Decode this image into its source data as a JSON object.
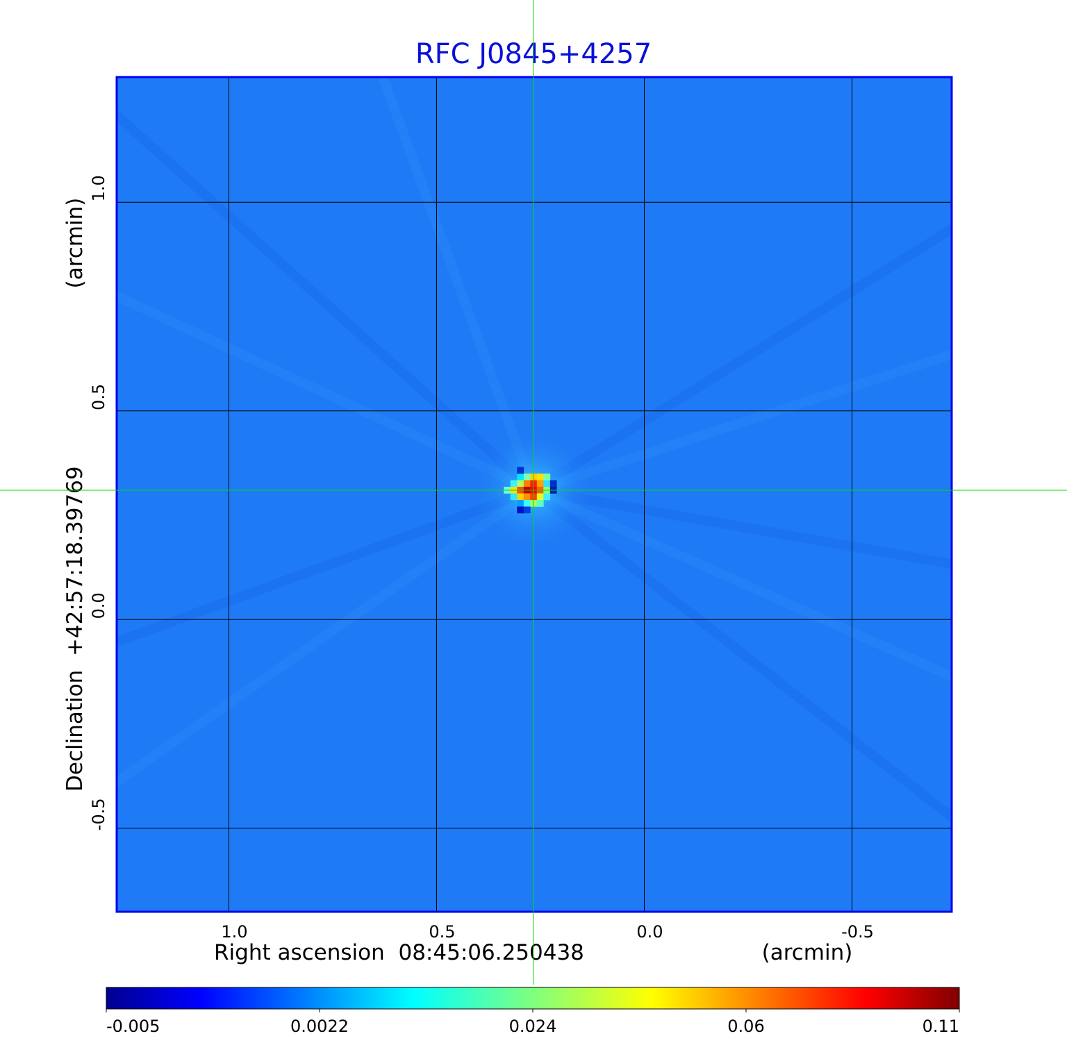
{
  "chart_data": {
    "type": "heatmap",
    "title": "RFC J0845+4257",
    "xlabel": "Right ascension  08:45:06.250438",
    "xunit": "(arcmin)",
    "ylabel": "Declination  +42:57:18.39769",
    "yunit": "(arcmin)",
    "xlim": [
      1.27,
      -0.74
    ],
    "ylim": [
      -0.7,
      1.3
    ],
    "x_ticks": [
      1.0,
      0.5,
      0.0,
      -0.5
    ],
    "x_tick_labels": [
      "1.0",
      "0.5",
      "0.0",
      "-0.5"
    ],
    "y_ticks": [
      -0.5,
      0.0,
      0.5,
      1.0
    ],
    "y_tick_labels": [
      "-0.5",
      "0.0",
      "0.5",
      "1.0"
    ],
    "grid": true,
    "crosshair": {
      "x": 0.267,
      "y": 0.31
    },
    "source_peak": {
      "x": 0.267,
      "y": 0.31,
      "value": 0.11
    },
    "colorbar": {
      "colormap": "jet",
      "tick_labels": [
        "-0.005",
        "0.0022",
        "0.024",
        "0.06",
        "0.11"
      ],
      "tick_values": [
        -0.005,
        0.0022,
        0.024,
        0.06,
        0.11
      ],
      "range": [
        -0.005,
        0.11
      ]
    },
    "colors": {
      "title": "#0a10d8",
      "frame": "#0000ee",
      "grid": "#000000",
      "crosshair": "#00dd00",
      "background_field": "#1f7af5"
    }
  }
}
